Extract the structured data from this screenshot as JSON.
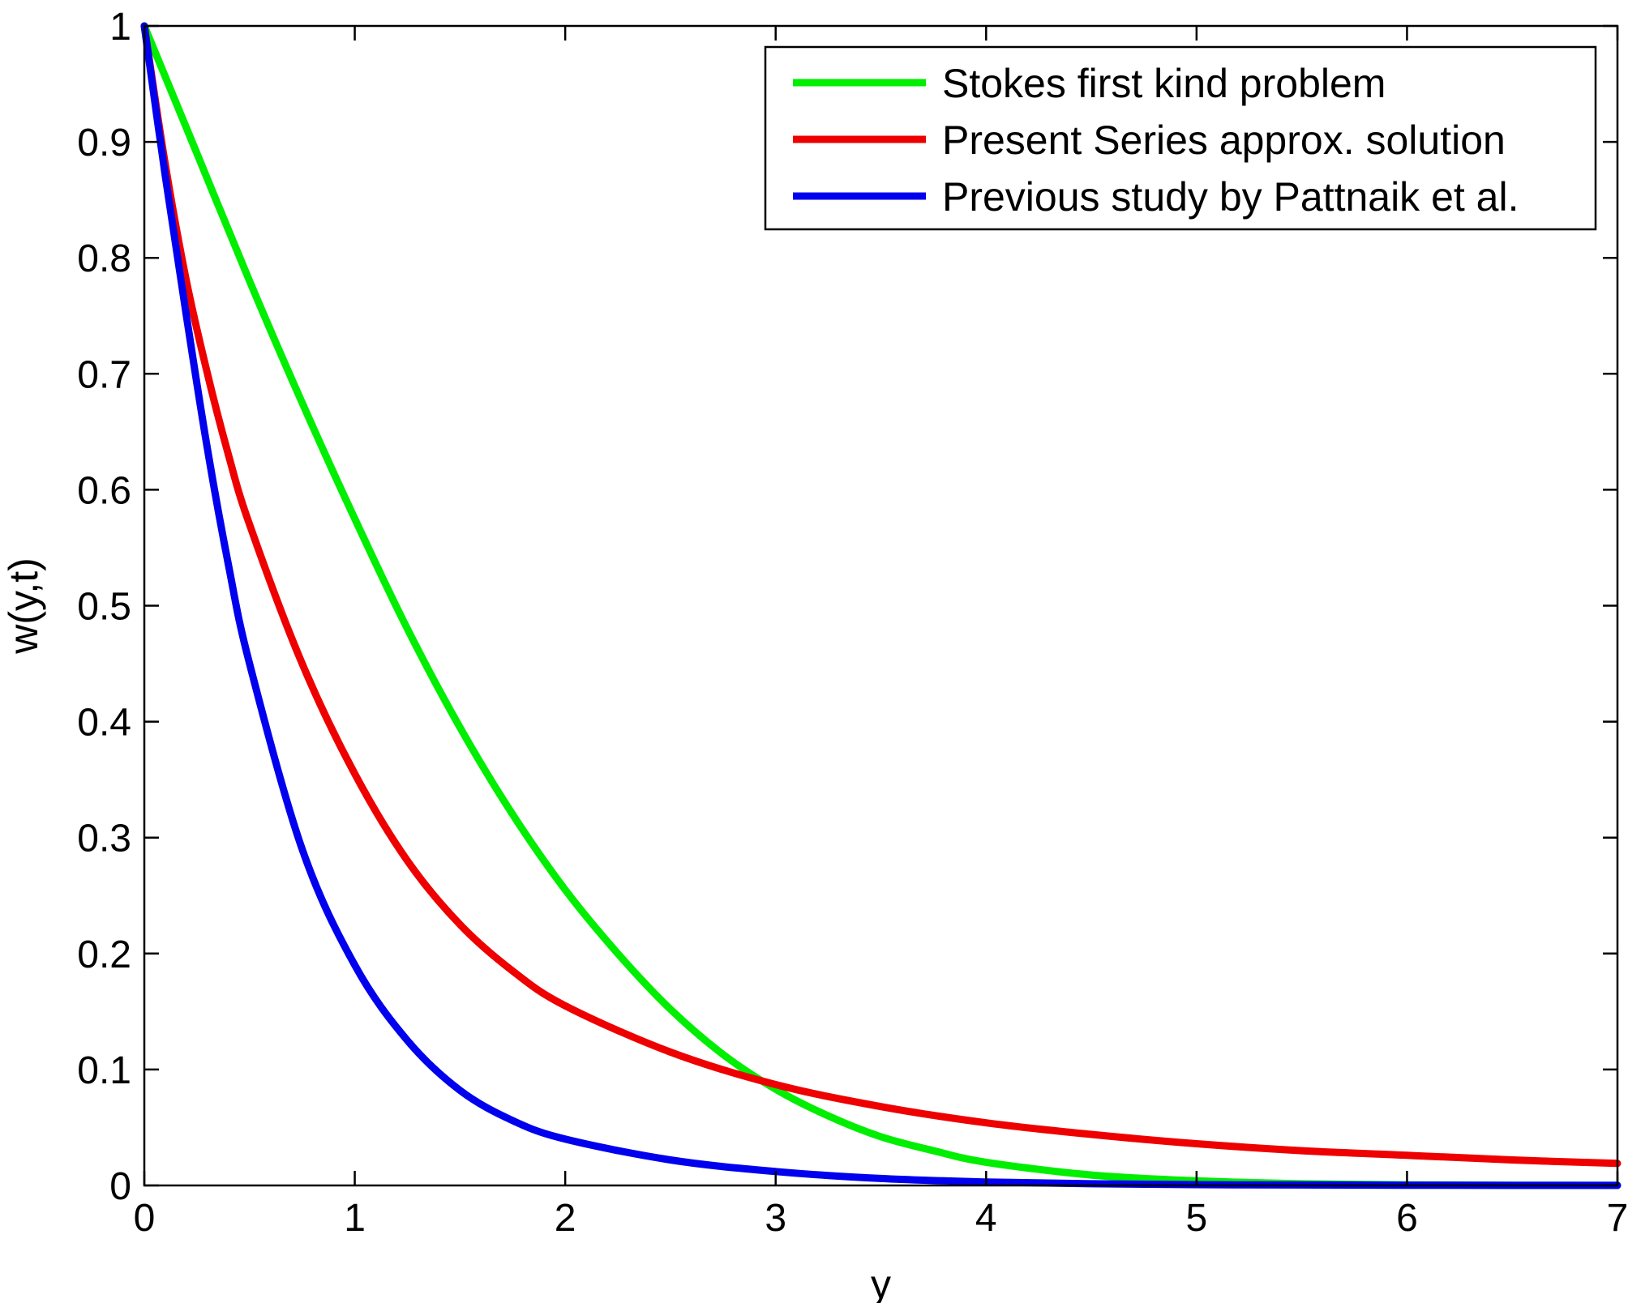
{
  "chart_data": {
    "type": "line",
    "title": "",
    "xlabel": "y",
    "ylabel": "w(y,t)",
    "xlim": [
      0,
      7
    ],
    "ylim": [
      0,
      1
    ],
    "xticks": [
      "0",
      "1",
      "2",
      "3",
      "4",
      "5",
      "6",
      "7"
    ],
    "yticks": [
      "0",
      "0.1",
      "0.2",
      "0.3",
      "0.4",
      "0.5",
      "0.6",
      "0.7",
      "0.8",
      "0.9",
      "1"
    ],
    "grid": false,
    "legend_position": "top-right",
    "series": [
      {
        "name": "Stokes first kind problem",
        "color": "#00ee00",
        "x": [
          0,
          0.25,
          0.5,
          0.75,
          1.0,
          1.25,
          1.5,
          1.75,
          2.0,
          2.25,
          2.5,
          2.75,
          3.0,
          3.25,
          3.5,
          3.75,
          4.0,
          4.5,
          5.0,
          5.5,
          6.0,
          6.5,
          7.0
        ],
        "y": [
          1.0,
          0.89,
          0.78,
          0.675,
          0.575,
          0.48,
          0.395,
          0.32,
          0.255,
          0.2,
          0.152,
          0.113,
          0.083,
          0.06,
          0.042,
          0.03,
          0.02,
          0.009,
          0.004,
          0.0015,
          0.0005,
          0.0002,
          0.0001
        ]
      },
      {
        "name": "Present Series approx. solution",
        "color": "#ee0000",
        "x": [
          0,
          0.1,
          0.2,
          0.3,
          0.4,
          0.5,
          0.75,
          1.0,
          1.25,
          1.5,
          1.75,
          2.0,
          2.5,
          3.0,
          3.5,
          4.0,
          4.5,
          5.0,
          5.5,
          6.0,
          6.5,
          7.0
        ],
        "y": [
          1.0,
          0.88,
          0.78,
          0.7,
          0.63,
          0.57,
          0.45,
          0.355,
          0.28,
          0.225,
          0.185,
          0.155,
          0.115,
          0.087,
          0.068,
          0.054,
          0.044,
          0.036,
          0.03,
          0.026,
          0.022,
          0.019
        ]
      },
      {
        "name": "Previous study by Pattnaik et al.",
        "color": "#0000ee",
        "x": [
          0,
          0.1,
          0.2,
          0.3,
          0.4,
          0.5,
          0.75,
          1.0,
          1.25,
          1.5,
          1.75,
          2.0,
          2.5,
          3.0,
          3.5,
          4.0,
          4.5,
          5.0,
          5.5,
          6.0,
          6.5,
          7.0
        ],
        "y": [
          1.0,
          0.87,
          0.75,
          0.635,
          0.535,
          0.45,
          0.29,
          0.19,
          0.125,
          0.082,
          0.056,
          0.04,
          0.022,
          0.012,
          0.006,
          0.003,
          0.0015,
          0.0007,
          0.0004,
          0.0002,
          0.0001,
          0.0001
        ]
      }
    ]
  }
}
